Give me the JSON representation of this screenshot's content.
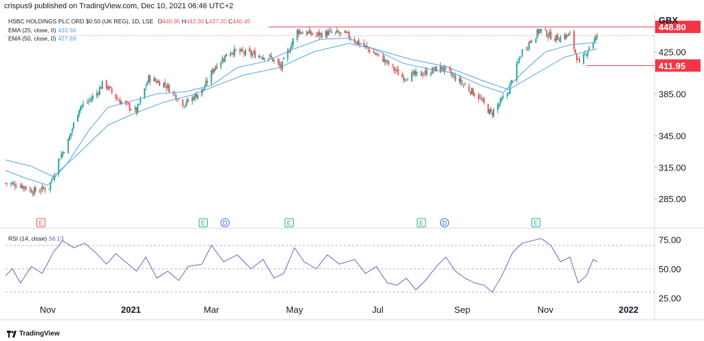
{
  "header": {
    "publisher": "crispus9 published on TradingView.com, Dec 10, 2021 06:46 UTC+2"
  },
  "legend": {
    "symbol": "HSBC HOLDINGS PLC ORD $0.50 (UK REG), 1D, LSE",
    "ohlc": [
      {
        "k": "O",
        "v": "440.95"
      },
      {
        "k": "H",
        "v": "442.30"
      },
      {
        "k": "L",
        "v": "437.20"
      },
      {
        "k": "C",
        "v": "440.45"
      }
    ],
    "ema25_label": "EMA (25, close, 0)",
    "ema25_value": "433.56",
    "ema50_label": "EMA (50, close, 0)",
    "ema50_value": "427.69",
    "rsi_label": "RSI (14, close)",
    "rsi_value": "56.13"
  },
  "currency": "GBX",
  "footer_brand": "TradingView",
  "colors": {
    "up": "#26a69a",
    "down": "#ef5350",
    "ema": "#4ba3e3",
    "rsi": "#7e57c2",
    "resistance": "#f23645",
    "event_green": "#26a69a",
    "event_blue": "#2962ff",
    "event_red": "#ef5350"
  },
  "chart_data": [
    {
      "type": "candlestick",
      "x_axis_labels": [
        {
          "label": "Nov",
          "date": "2020-11-01"
        },
        {
          "label": "2021",
          "date": "2021-01-01"
        },
        {
          "label": "Mar",
          "date": "2021-03-01"
        },
        {
          "label": "May",
          "date": "2021-05-01"
        },
        {
          "label": "Jul",
          "date": "2021-07-01"
        },
        {
          "label": "Sep",
          "date": "2021-09-01"
        },
        {
          "label": "Nov",
          "date": "2021-11-01"
        },
        {
          "label": "2022",
          "date": "2022-01-01"
        }
      ],
      "x_range": [
        "2020-10-01",
        "2022-01-20"
      ],
      "y_ticks": [
        "425.00",
        "385.00",
        "345.00",
        "315.00",
        "285.00"
      ],
      "y_range": [
        270,
        460
      ],
      "price_labels": [
        {
          "text": "448.80",
          "value": 448.8,
          "style": "resistance"
        },
        {
          "text": "411.95",
          "value": 411.95,
          "style": "support"
        }
      ],
      "resistance_line": {
        "value": 448.8,
        "from": "2021-04-12"
      },
      "support_line": {
        "value": 411.95,
        "from": "2021-12-01"
      },
      "close_dotted": 440.45,
      "series": [
        {
          "name": "Close",
          "points": [
            [
              "2020-10-01",
              300
            ],
            [
              "2020-10-12",
              298
            ],
            [
              "2020-10-22",
              292
            ],
            [
              "2020-11-02",
              296
            ],
            [
              "2020-11-09",
              322
            ],
            [
              "2020-11-16",
              340
            ],
            [
              "2020-11-24",
              372
            ],
            [
              "2020-12-01",
              378
            ],
            [
              "2020-12-07",
              386
            ],
            [
              "2020-12-12",
              396
            ],
            [
              "2020-12-22",
              380
            ],
            [
              "2021-01-05",
              368
            ],
            [
              "2021-01-14",
              400
            ],
            [
              "2021-01-26",
              394
            ],
            [
              "2021-02-09",
              375
            ],
            [
              "2021-02-23",
              389
            ],
            [
              "2021-03-03",
              410
            ],
            [
              "2021-03-15",
              426
            ],
            [
              "2021-03-30",
              423
            ],
            [
              "2021-04-13",
              420
            ],
            [
              "2021-04-21",
              410
            ],
            [
              "2021-05-03",
              445
            ],
            [
              "2021-05-17",
              441
            ],
            [
              "2021-05-26",
              443
            ],
            [
              "2021-06-07",
              442
            ],
            [
              "2021-06-21",
              430
            ],
            [
              "2021-07-05",
              418
            ],
            [
              "2021-07-19",
              401
            ],
            [
              "2021-08-02",
              404
            ],
            [
              "2021-08-17",
              410
            ],
            [
              "2021-08-30",
              397
            ],
            [
              "2021-09-13",
              382
            ],
            [
              "2021-09-22",
              366
            ],
            [
              "2021-10-04",
              385
            ],
            [
              "2021-10-15",
              426
            ],
            [
              "2021-10-28",
              446
            ],
            [
              "2021-11-08",
              438
            ],
            [
              "2021-11-19",
              441
            ],
            [
              "2021-11-26",
              412
            ],
            [
              "2021-12-03",
              430
            ],
            [
              "2021-12-09",
              440
            ]
          ]
        },
        {
          "name": "EMA (25, close, 0)",
          "points": [
            [
              "2020-10-01",
              312
            ],
            [
              "2020-10-15",
              305
            ],
            [
              "2020-11-01",
              298
            ],
            [
              "2020-11-15",
              318
            ],
            [
              "2020-12-01",
              350
            ],
            [
              "2020-12-15",
              372
            ],
            [
              "2021-01-01",
              378
            ],
            [
              "2021-01-20",
              385
            ],
            [
              "2021-02-10",
              387
            ],
            [
              "2021-03-01",
              393
            ],
            [
              "2021-03-20",
              410
            ],
            [
              "2021-04-10",
              416
            ],
            [
              "2021-05-01",
              428
            ],
            [
              "2021-05-20",
              437
            ],
            [
              "2021-06-10",
              438
            ],
            [
              "2021-07-01",
              426
            ],
            [
              "2021-07-20",
              414
            ],
            [
              "2021-08-10",
              408
            ],
            [
              "2021-08-25",
              405
            ],
            [
              "2021-09-15",
              393
            ],
            [
              "2021-10-01",
              386
            ],
            [
              "2021-10-15",
              405
            ],
            [
              "2021-11-01",
              425
            ],
            [
              "2021-11-20",
              432
            ],
            [
              "2021-12-09",
              434
            ]
          ]
        },
        {
          "name": "EMA (50, close, 0)",
          "points": [
            [
              "2020-10-01",
              322
            ],
            [
              "2020-10-20",
              316
            ],
            [
              "2020-11-05",
              306
            ],
            [
              "2020-11-25",
              330
            ],
            [
              "2020-12-15",
              355
            ],
            [
              "2021-01-01",
              365
            ],
            [
              "2021-01-25",
              377
            ],
            [
              "2021-02-15",
              384
            ],
            [
              "2021-03-05",
              393
            ],
            [
              "2021-03-25",
              403
            ],
            [
              "2021-04-20",
              410
            ],
            [
              "2021-05-15",
              425
            ],
            [
              "2021-06-10",
              433
            ],
            [
              "2021-07-01",
              427
            ],
            [
              "2021-07-25",
              418
            ],
            [
              "2021-08-20",
              411
            ],
            [
              "2021-09-15",
              398
            ],
            [
              "2021-10-05",
              389
            ],
            [
              "2021-10-25",
              404
            ],
            [
              "2021-11-15",
              420
            ],
            [
              "2021-12-09",
              428
            ]
          ]
        }
      ]
    },
    {
      "type": "line",
      "name": "RSI (14, close)",
      "y_ticks": [
        "75.00",
        "50.00",
        "25.00"
      ],
      "y_range": [
        20,
        80
      ],
      "bands": [
        70,
        50,
        30
      ],
      "series": [
        {
          "name": "RSI",
          "points": [
            [
              "2020-10-01",
              44
            ],
            [
              "2020-10-06",
              50
            ],
            [
              "2020-10-12",
              38
            ],
            [
              "2020-10-20",
              52
            ],
            [
              "2020-10-28",
              46
            ],
            [
              "2020-11-05",
              64
            ],
            [
              "2020-11-12",
              74
            ],
            [
              "2020-11-20",
              68
            ],
            [
              "2020-11-28",
              72
            ],
            [
              "2020-12-06",
              64
            ],
            [
              "2020-12-14",
              54
            ],
            [
              "2020-12-21",
              63
            ],
            [
              "2021-01-05",
              48
            ],
            [
              "2021-01-12",
              60
            ],
            [
              "2021-01-20",
              42
            ],
            [
              "2021-01-28",
              48
            ],
            [
              "2021-02-05",
              40
            ],
            [
              "2021-02-12",
              52
            ],
            [
              "2021-02-22",
              54
            ],
            [
              "2021-03-01",
              70
            ],
            [
              "2021-03-10",
              56
            ],
            [
              "2021-03-20",
              62
            ],
            [
              "2021-03-30",
              50
            ],
            [
              "2021-04-08",
              58
            ],
            [
              "2021-04-16",
              42
            ],
            [
              "2021-04-23",
              46
            ],
            [
              "2021-05-01",
              68
            ],
            [
              "2021-05-08",
              56
            ],
            [
              "2021-05-17",
              50
            ],
            [
              "2021-05-25",
              62
            ],
            [
              "2021-06-03",
              54
            ],
            [
              "2021-06-14",
              58
            ],
            [
              "2021-06-22",
              46
            ],
            [
              "2021-06-30",
              52
            ],
            [
              "2021-07-08",
              38
            ],
            [
              "2021-07-15",
              36
            ],
            [
              "2021-07-22",
              42
            ],
            [
              "2021-07-29",
              32
            ],
            [
              "2021-08-05",
              40
            ],
            [
              "2021-08-13",
              52
            ],
            [
              "2021-08-20",
              60
            ],
            [
              "2021-08-27",
              48
            ],
            [
              "2021-09-03",
              42
            ],
            [
              "2021-09-10",
              38
            ],
            [
              "2021-09-17",
              36
            ],
            [
              "2021-09-23",
              30
            ],
            [
              "2021-09-30",
              44
            ],
            [
              "2021-10-08",
              64
            ],
            [
              "2021-10-15",
              72
            ],
            [
              "2021-10-22",
              74
            ],
            [
              "2021-10-29",
              76
            ],
            [
              "2021-11-05",
              70
            ],
            [
              "2021-11-12",
              56
            ],
            [
              "2021-11-19",
              60
            ],
            [
              "2021-11-25",
              38
            ],
            [
              "2021-12-01",
              44
            ],
            [
              "2021-12-06",
              58
            ],
            [
              "2021-12-09",
              56
            ]
          ]
        }
      ]
    }
  ]
}
